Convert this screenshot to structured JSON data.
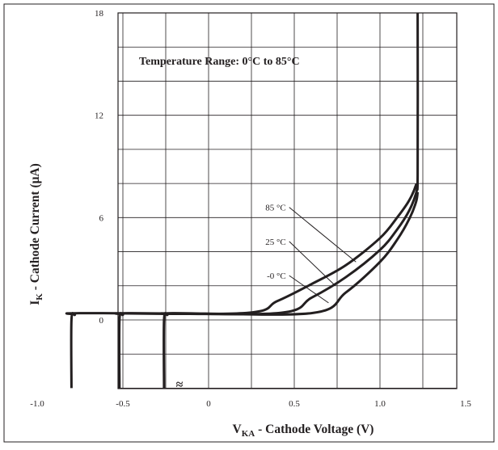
{
  "chart_data": {
    "type": "line",
    "title": "",
    "annotation": "Temperature Range: 0°C to 85°C",
    "xlabel": {
      "main": "V",
      "sub": "KA",
      "rest": " - Cathode Voltage (V)"
    },
    "ylabel": {
      "main": "I",
      "sub": "K",
      "rest": " - Cathode Current (μA)"
    },
    "xlim": [
      -1.0,
      1.5
    ],
    "ylim": [
      -4,
      18
    ],
    "grid": true,
    "x_ticks": [
      -1.0,
      -0.5,
      0,
      0.5,
      1.0,
      1.5
    ],
    "x_tick_labels": [
      "-1.0",
      "-0.5",
      "0",
      "0.5",
      "1.0",
      "1.5"
    ],
    "y_ticks": [
      0,
      6,
      12,
      18
    ],
    "y_tick_labels": [
      "0",
      "6",
      "12",
      "18"
    ],
    "axis_break": "≈",
    "colors": {
      "line": "#231f20",
      "grid": "#231f20"
    },
    "series": [
      {
        "name": "85 °C",
        "x": [
          -0.8,
          -0.8,
          -0.78,
          -0.75,
          0.2,
          0.4,
          0.6,
          0.8,
          1.0,
          1.1,
          1.17,
          1.21,
          1.22,
          1.22
        ],
        "y": [
          -4,
          0,
          0.3,
          0.4,
          0.4,
          1.1,
          2.1,
          3.2,
          4.8,
          6.0,
          7.0,
          7.9,
          8.5,
          18
        ]
      },
      {
        "name": "25 °C",
        "x": [
          -0.52,
          -0.52,
          -0.5,
          -0.47,
          0.4,
          0.6,
          0.8,
          1.0,
          1.1,
          1.17,
          1.21,
          1.22
        ],
        "y": [
          -4,
          0,
          0.3,
          0.4,
          0.4,
          1.3,
          2.5,
          4.1,
          5.3,
          6.4,
          7.4,
          8.0
        ]
      },
      {
        "name": "-0 °C",
        "x": [
          -0.26,
          -0.26,
          -0.24,
          -0.21,
          0.6,
          0.8,
          1.0,
          1.1,
          1.17,
          1.21,
          1.22
        ],
        "y": [
          -4,
          0,
          0.3,
          0.4,
          0.4,
          1.6,
          3.4,
          4.7,
          5.9,
          6.9,
          7.5
        ]
      }
    ],
    "labels": [
      {
        "text": "85 °C",
        "series": "85 °C",
        "at": [
          0.48,
          6.6
        ],
        "to": [
          0.86,
          3.4
        ]
      },
      {
        "text": "25 °C",
        "series": "25 °C",
        "at": [
          0.48,
          4.6
        ],
        "to": [
          0.74,
          2.0
        ]
      },
      {
        "text": "-0 °C",
        "series": "-0 °C",
        "at": [
          0.48,
          2.6
        ],
        "to": [
          0.7,
          1.0
        ]
      }
    ]
  }
}
